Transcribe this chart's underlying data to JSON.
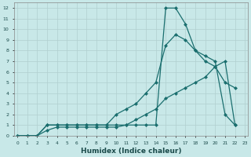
{
  "xlabel": "Humidex (Indice chaleur)",
  "bg_color": "#c8e8e8",
  "grid_color": "#b0cfcf",
  "line_color": "#1a6e6e",
  "xticks": [
    0,
    1,
    2,
    3,
    4,
    5,
    6,
    7,
    8,
    9,
    10,
    11,
    12,
    13,
    14,
    15,
    16,
    17,
    18,
    19,
    20,
    21,
    22,
    23
  ],
  "yticks": [
    0,
    1,
    2,
    3,
    4,
    5,
    6,
    7,
    8,
    9,
    10,
    11,
    12
  ],
  "line1_x": [
    0,
    1,
    2,
    3,
    4,
    5,
    6,
    7,
    8,
    9,
    10,
    11,
    12,
    13,
    14,
    15,
    16,
    17,
    18,
    19,
    20,
    21,
    22
  ],
  "line1_y": [
    0,
    0,
    0,
    1,
    1,
    1,
    1,
    1,
    1,
    1,
    1,
    1,
    1,
    1,
    1,
    12,
    12,
    10.5,
    8,
    7.5,
    7,
    2,
    1
  ],
  "line2_x": [
    0,
    1,
    2,
    3,
    4,
    5,
    6,
    7,
    8,
    9,
    10,
    11,
    12,
    13,
    14,
    15,
    16,
    17,
    18,
    19,
    20,
    21,
    22
  ],
  "line2_y": [
    0,
    0,
    0,
    1,
    1,
    1,
    1,
    1,
    1,
    1,
    2,
    2.5,
    3,
    4,
    5,
    8.5,
    9.5,
    9,
    8,
    7,
    6.5,
    5,
    4.5
  ],
  "line3_x": [
    0,
    1,
    2,
    3,
    4,
    5,
    6,
    7,
    8,
    9,
    10,
    11,
    12,
    13,
    14,
    15,
    16,
    17,
    18,
    19,
    20,
    21,
    22
  ],
  "line3_y": [
    0,
    0,
    0,
    0.5,
    0.8,
    0.8,
    0.8,
    0.8,
    0.8,
    0.8,
    0.8,
    1,
    1.5,
    2,
    2.5,
    3.5,
    4,
    4.5,
    5,
    5.5,
    6.5,
    7,
    1
  ]
}
